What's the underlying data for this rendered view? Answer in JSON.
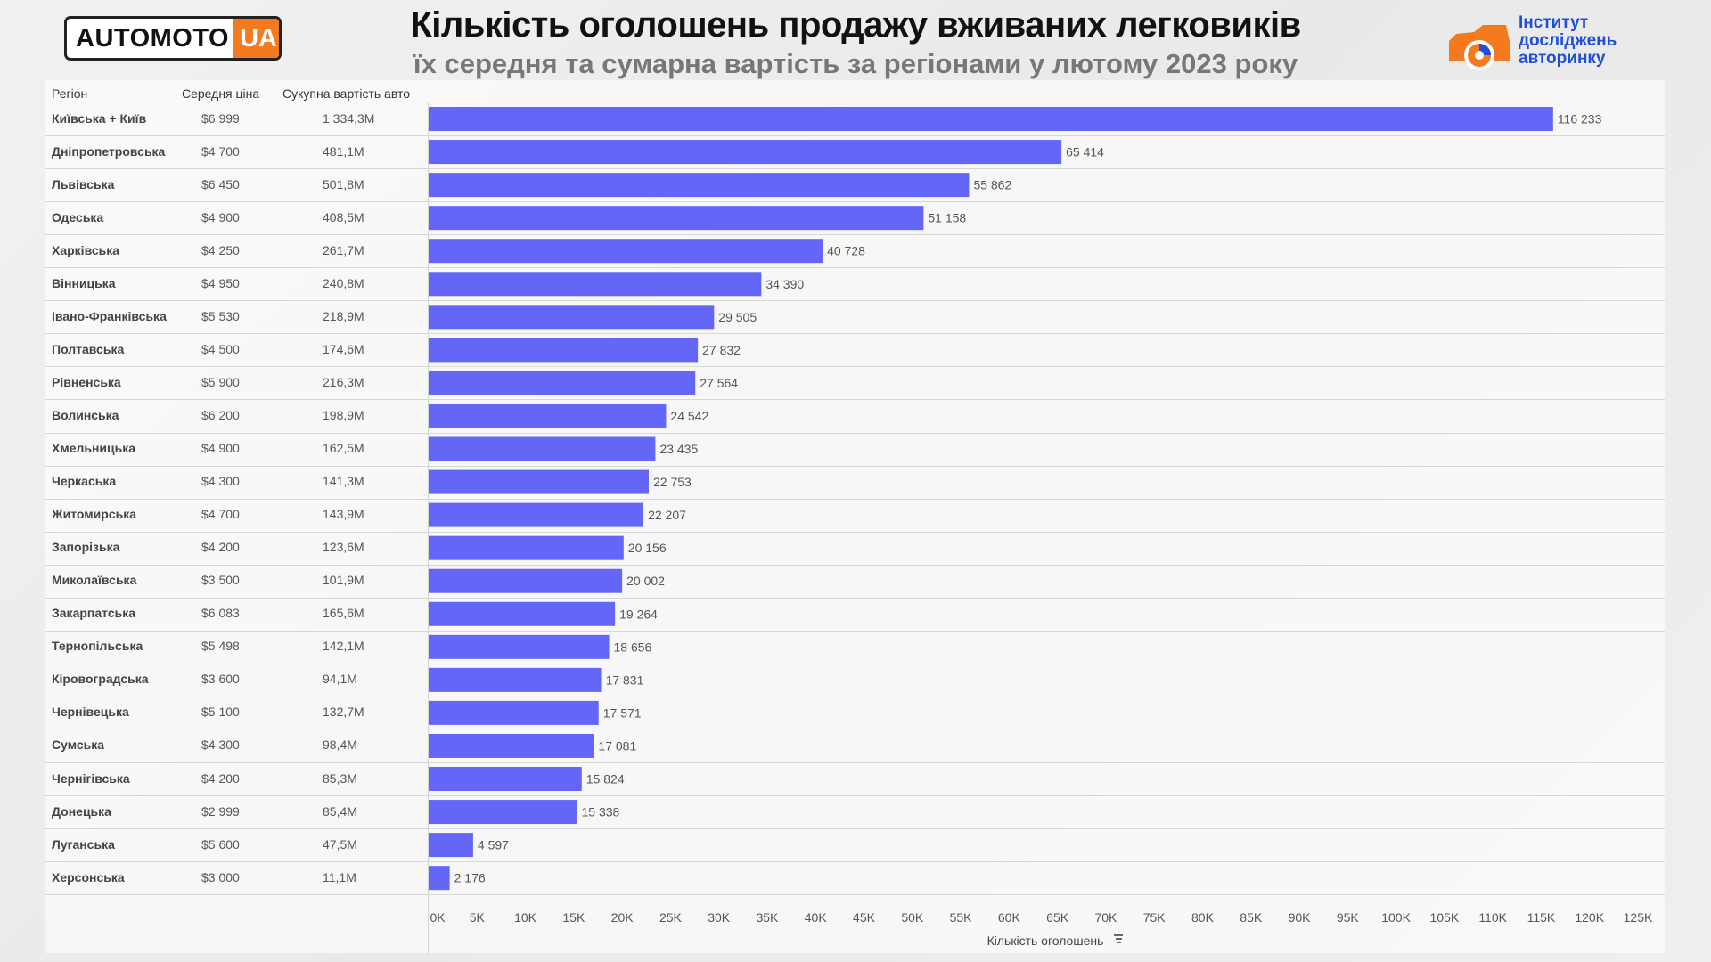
{
  "header": {
    "logo_left_part1": "AUTOMOTO",
    "logo_left_part2": "UA",
    "title": "Кількість оголошень продажу вживаних легковиків",
    "subtitle": "їх середня та сумарна вартість за регіонами у лютому 2023 року",
    "logo_right_line1": "Інститут",
    "logo_right_line2": "досліджень",
    "logo_right_line3": "авторинку"
  },
  "table": {
    "col_region": "Регіон",
    "col_avg_price": "Середня ціна",
    "col_total_value": "Сукупна вартість авто"
  },
  "colors": {
    "bar": "#6366f7",
    "accent_orange": "#f47a20",
    "brand_blue": "#1f4fd8"
  },
  "chart_data": {
    "type": "bar",
    "orientation": "horizontal",
    "xlabel": "Кількість оголошень",
    "xlim": [
      0,
      125000
    ],
    "x_ticks": [
      "0K",
      "5K",
      "10K",
      "15K",
      "20K",
      "25K",
      "30K",
      "35K",
      "40K",
      "45K",
      "50K",
      "55K",
      "60K",
      "65K",
      "70K",
      "75K",
      "80K",
      "85K",
      "90K",
      "95K",
      "100K",
      "105K",
      "110K",
      "115K",
      "120K",
      "125K"
    ],
    "x_tick_values": [
      0,
      5000,
      10000,
      15000,
      20000,
      25000,
      30000,
      35000,
      40000,
      45000,
      50000,
      55000,
      60000,
      65000,
      70000,
      75000,
      80000,
      85000,
      90000,
      95000,
      100000,
      105000,
      110000,
      115000,
      120000,
      125000
    ],
    "categories": [
      "Київська + Київ",
      "Дніпропетровська",
      "Львівська",
      "Одеська",
      "Харківська",
      "Вінницька",
      "Івано-Франківська",
      "Полтавська",
      "Рівненська",
      "Волинська",
      "Хмельницька",
      "Черкаська",
      "Житомирська",
      "Запорізька",
      "Миколаївська",
      "Закарпатська",
      "Тернопільська",
      "Кіровоградська",
      "Чернівецька",
      "Сумська",
      "Чернігівська",
      "Донецька",
      "Луганська",
      "Херсонська"
    ],
    "avg_price": [
      "$6 999",
      "$4 700",
      "$6 450",
      "$4 900",
      "$4 250",
      "$4 950",
      "$5 530",
      "$4 500",
      "$5 900",
      "$6 200",
      "$4 900",
      "$4 300",
      "$4 700",
      "$4 200",
      "$3 500",
      "$6 083",
      "$5 498",
      "$3 600",
      "$5 100",
      "$4 300",
      "$4 200",
      "$2 999",
      "$5 600",
      "$3 000"
    ],
    "total_value": [
      "1 334,3M",
      "481,1M",
      "501,8M",
      "408,5M",
      "261,7M",
      "240,8M",
      "218,9M",
      "174,6M",
      "216,3M",
      "198,9M",
      "162,5M",
      "141,3M",
      "143,9M",
      "123,6M",
      "101,9M",
      "165,6M",
      "142,1M",
      "94,1M",
      "132,7M",
      "98,4M",
      "85,3M",
      "85,4M",
      "47,5M",
      "11,1M"
    ],
    "values": [
      116233,
      65414,
      55862,
      51158,
      40728,
      34390,
      29505,
      27832,
      27564,
      24542,
      23435,
      22753,
      22207,
      20156,
      20002,
      19264,
      18656,
      17831,
      17571,
      17081,
      15824,
      15338,
      4597,
      2176
    ],
    "value_labels": [
      "116 233",
      "65 414",
      "55 862",
      "51 158",
      "40 728",
      "34 390",
      "29 505",
      "27 832",
      "27 564",
      "24 542",
      "23 435",
      "22 753",
      "22 207",
      "20 156",
      "20 002",
      "19 264",
      "18 656",
      "17 831",
      "17 571",
      "17 081",
      "15 824",
      "15 338",
      "4 597",
      "2 176"
    ],
    "grid": false
  }
}
